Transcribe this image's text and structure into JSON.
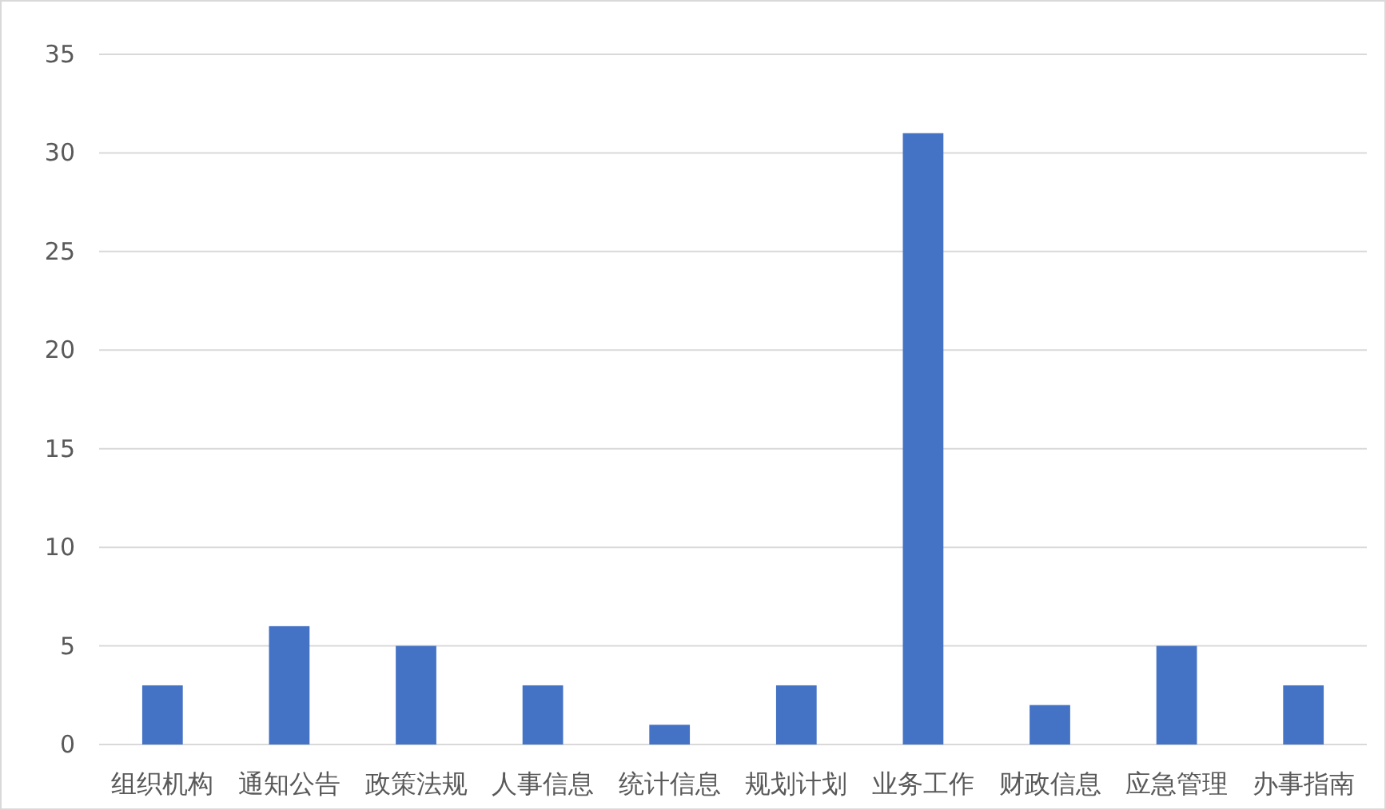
{
  "chart_data": {
    "type": "bar",
    "categories": [
      "组织机构",
      "通知公告",
      "政策法规",
      "人事信息",
      "统计信息",
      "规划计划",
      "业务工作",
      "财政信息",
      "应急管理",
      "办事指南"
    ],
    "values": [
      3,
      6,
      5,
      3,
      1,
      3,
      31,
      2,
      5,
      3
    ],
    "color": "#4472c4",
    "ylim": [
      0,
      35
    ],
    "yticks": [
      0,
      5,
      10,
      15,
      20,
      25,
      30,
      35
    ],
    "grid": "y"
  }
}
